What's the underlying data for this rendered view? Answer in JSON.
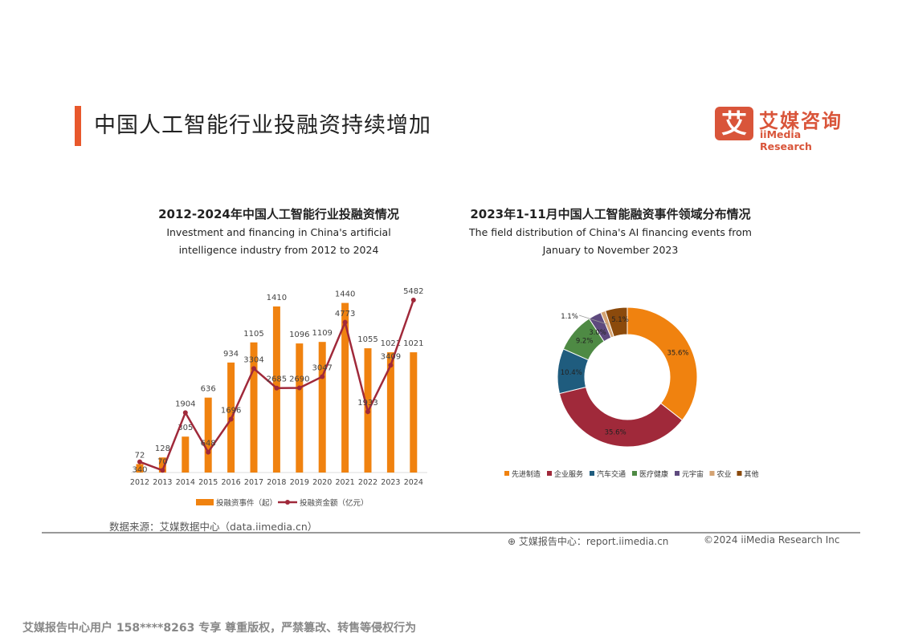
{
  "page": {
    "title": "中国人工智能行业投融资持续增加",
    "source": "数据来源：艾媒数据中心（data.iimedia.cn）",
    "footer_report": "艾媒报告中心：report.iimedia.cn",
    "footer_copyright": "©2024  iiMedia Research  Inc",
    "watermark": "艾媒报告中心用户 158****8263 专享 尊重版权，严禁篡改、转售等侵权行为",
    "accent": "#E8582C"
  },
  "logo": {
    "mark": "艾",
    "cn": "艾媒咨询",
    "en": "iiMedia Research"
  },
  "chart_data": [
    {
      "type": "bar+line",
      "title": "2012-2024年中国人工智能行业投融资情况",
      "subtitle": "Investment and financing in China's artificial intelligence industry from 2012 to 2024",
      "categories": [
        "2012",
        "2013",
        "2014",
        "2015",
        "2016",
        "2017",
        "2018",
        "2019",
        "2020",
        "2021",
        "2022",
        "2023",
        "2024"
      ],
      "series": [
        {
          "name": "投融资事件（起）",
          "type": "bar",
          "color": "#F0820F",
          "values": [
            72,
            128,
            305,
            636,
            934,
            1105,
            1410,
            1096,
            1109,
            1440,
            1055,
            1021,
            1021
          ]
        },
        {
          "name": "投融资金额（亿元）",
          "type": "line",
          "color": "#A0293A",
          "values": [
            340,
            70,
            1904,
            648,
            1696,
            3304,
            2685,
            2690,
            3047,
            4773,
            1933,
            3409,
            5482
          ]
        }
      ],
      "legend": "bottom",
      "grid": false
    },
    {
      "type": "pie",
      "donut": true,
      "title": "2023年1-11月中国人工智能融资事件领域分布情况",
      "subtitle": "The field distribution of China's AI financing events from January to November 2023",
      "labels": [
        "先进制造",
        "企业服务",
        "汽车交通",
        "医疗健康",
        "元宇宙",
        "农业",
        "其他"
      ],
      "values": [
        35.6,
        35.6,
        10.4,
        9.2,
        3.0,
        1.1,
        5.1
      ],
      "value_labels": [
        "35.6%",
        "35.6%",
        "10.4%",
        "9.2%",
        "3.0%",
        "1.1%",
        "5.1%"
      ],
      "colors": [
        "#F0820F",
        "#A0293A",
        "#1F5C7E",
        "#4E8A44",
        "#5E4A7E",
        "#D4A373",
        "#8B4A0C"
      ],
      "legend": "bottom"
    }
  ]
}
